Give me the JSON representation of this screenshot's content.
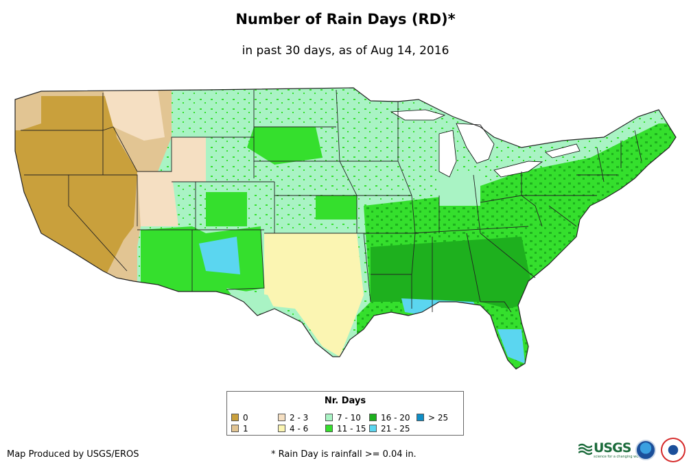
{
  "title": "Number of Rain Days (RD)*",
  "subtitle": "in past 30 days, as of Aug 14, 2016",
  "legend": {
    "title": "Nr. Days",
    "items": [
      {
        "label": "0",
        "color": "#c9a03c"
      },
      {
        "label": "1",
        "color": "#e2c593"
      },
      {
        "label": "2 - 3",
        "color": "#f5dfc2"
      },
      {
        "label": "4 - 6",
        "color": "#fbf5b2"
      },
      {
        "label": "7 - 10",
        "color": "#a9f3c4"
      },
      {
        "label": "11 - 15",
        "color": "#35df2d"
      },
      {
        "label": "16 - 20",
        "color": "#1eb01e"
      },
      {
        "label": "21 - 25",
        "color": "#5bd6f0"
      },
      {
        "label": "> 25",
        "color": "#0f8ec6"
      }
    ]
  },
  "credit": "Map Produced by USGS/EROS",
  "footnote": "* Rain Day is rainfall >= 0.04 in.",
  "logos": {
    "usgs": "USGS",
    "usgs_tagline": "science for a changing world"
  }
}
